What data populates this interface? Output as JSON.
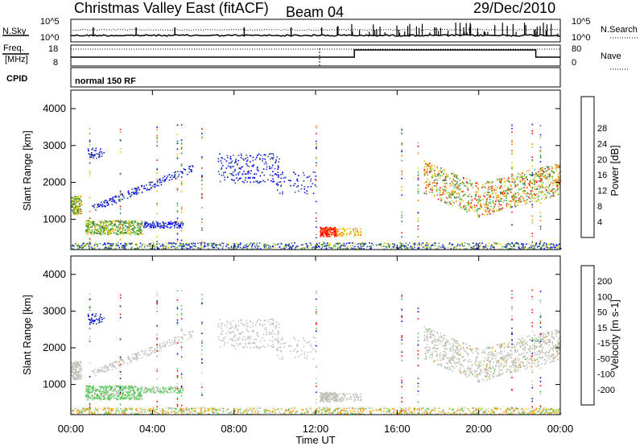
{
  "header": {
    "title": "Christmas Valley East (fitACF)",
    "beam": "Beam 04",
    "date": "29/Dec/2010"
  },
  "noise_panel": {
    "left_label": "N.Sky",
    "right_label": "N.Search",
    "left_ticks": [
      "10^5",
      "10^0"
    ],
    "right_ticks": [
      "10^5",
      "10^0"
    ]
  },
  "freq_panel": {
    "left_label_1": "Freq.",
    "left_label_2": "[MHz]",
    "right_label": "Nave",
    "left_ticks": [
      "18",
      "8"
    ],
    "right_ticks": [
      "80",
      "0"
    ]
  },
  "cpid": {
    "label": "CPID",
    "program": "normal 150 RF"
  },
  "colors": {
    "power_scale": [
      "#0000ff",
      "#2846a0",
      "#2f6e46",
      "#3ea04c",
      "#76c43a",
      "#ccd200",
      "#ffa500",
      "#ff7000",
      "#ff0000"
    ],
    "velocity_scale": [
      "#0000c8",
      "#1e3cc8",
      "#2a7a3a",
      "#4ec84e",
      "#c8c8c0",
      "#e8b400",
      "#ff8c00",
      "#ff3c00",
      "#ff0000"
    ],
    "ground_scatter": "#c0c0b8"
  },
  "chart_data": [
    {
      "type": "heatmap",
      "panel": "power",
      "ylabel": "Slant Range [km]",
      "xlabel": "",
      "ylim": [
        180,
        4500
      ],
      "y_ticks": [
        "1000",
        "2000",
        "3000",
        "4000"
      ],
      "colorbar": {
        "title": "Power [dB]",
        "ticks": [
          "4",
          "8",
          "12",
          "16",
          "20",
          "24",
          "28"
        ],
        "range": [
          0,
          30
        ]
      },
      "approximate_features": [
        {
          "x_hours": [
            0.0,
            0.5
          ],
          "range_km": [
            1200,
            1600
          ],
          "value_db": 18
        },
        {
          "x_hours": [
            0.6,
            3.0
          ],
          "range_km": [
            600,
            950
          ],
          "value_db": 16
        },
        {
          "x_hours": [
            12.2,
            13.0
          ],
          "range_km": [
            550,
            800
          ],
          "value_db": 30
        },
        {
          "x_hours": [
            17.5,
            21.0
          ],
          "range_km": [
            1000,
            2200
          ],
          "value_db": 22
        },
        {
          "x_hours": [
            21.0,
            24.0
          ],
          "range_km": [
            900,
            2000
          ],
          "value_db": 18
        }
      ]
    },
    {
      "type": "heatmap",
      "panel": "velocity",
      "ylabel": "Slant Range [km]",
      "xlabel": "Time UT",
      "ylim": [
        180,
        4500
      ],
      "y_ticks": [
        "1000",
        "2000",
        "3000",
        "4000"
      ],
      "x_ticks": [
        "00:00",
        "04:00",
        "08:00",
        "12:00",
        "16:00",
        "20:00",
        "00:00"
      ],
      "colorbar": {
        "title": "Velocity [m s-1]",
        "ticks": [
          "200",
          "100",
          "50",
          "15",
          "-15",
          "-50",
          "-100",
          "-200"
        ],
        "range": [
          -250,
          250
        ]
      }
    }
  ]
}
